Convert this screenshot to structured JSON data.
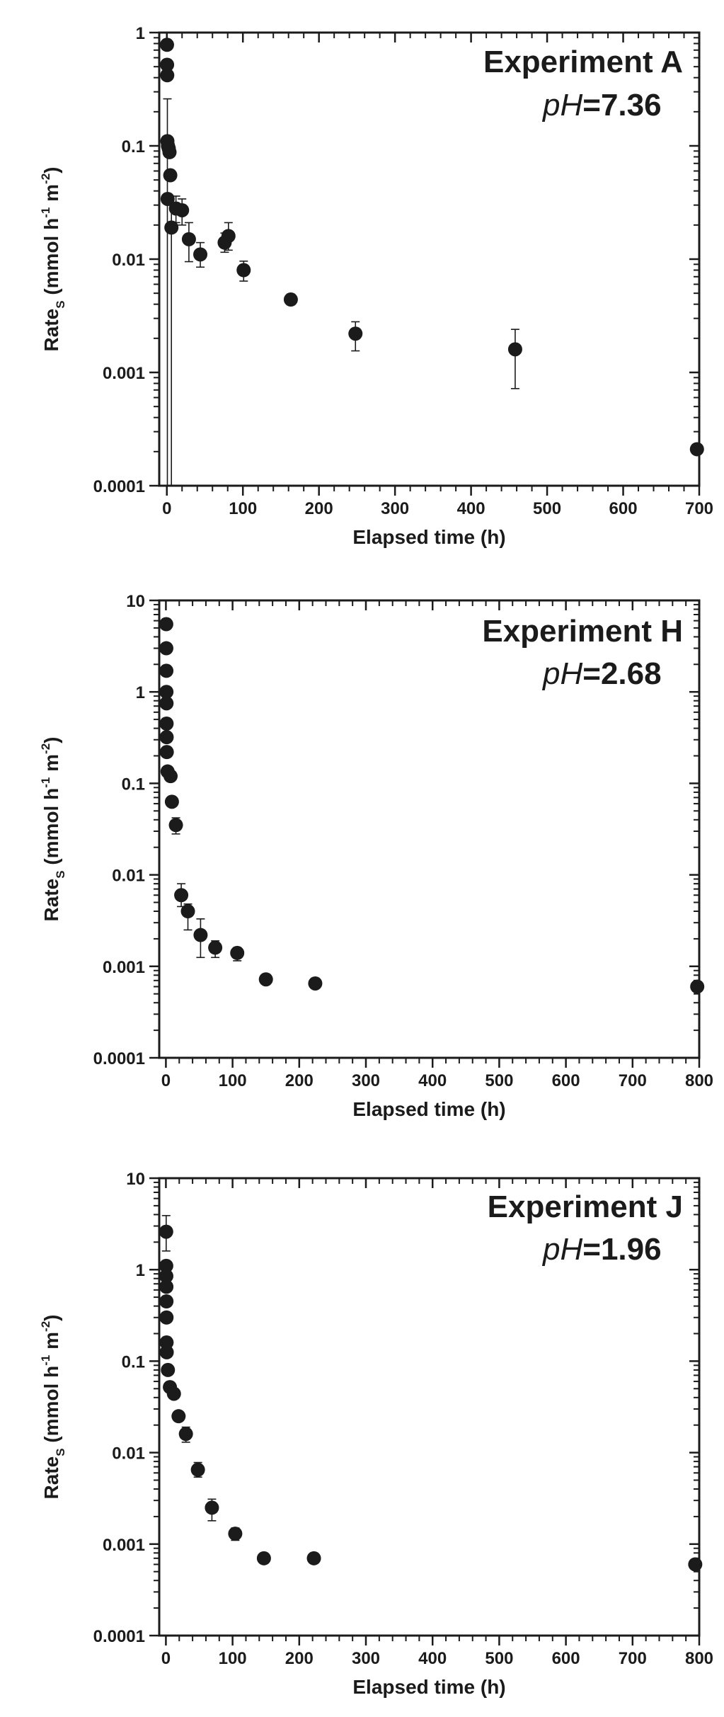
{
  "chart_data": [
    {
      "type": "scatter",
      "panel": "A",
      "annotation": "Experiment A",
      "ph_symbol": "pH",
      "ph_value": "=7.36",
      "xlabel": "Elapsed time (h)",
      "ylabel_main": "Rate",
      "ylabel_sub": "S",
      "ylabel_units_pre": " (mmol h",
      "ylabel_sup1": "-1",
      "ylabel_units_mid": " m",
      "ylabel_sup2": "-2",
      "ylabel_units_post": ")",
      "yscale": "log",
      "xlim": [
        -10,
        700
      ],
      "ylim": [
        0.0001,
        1
      ],
      "xticks": [
        0,
        100,
        200,
        300,
        400,
        500,
        600,
        700
      ],
      "xtick_labels": [
        "0",
        "100",
        "200",
        "300",
        "400",
        "500",
        "600",
        "700"
      ],
      "yticks": [
        0.0001,
        0.001,
        0.01,
        0.1,
        1
      ],
      "ytick_labels": [
        "0.0001",
        "0.001",
        "0.01",
        "0.1",
        "1"
      ],
      "marker_color": "#1b1b1b",
      "points": [
        {
          "x": 0.2,
          "y": 0.78
        },
        {
          "x": 0.3,
          "y": 0.52
        },
        {
          "x": 0.5,
          "y": 0.42
        },
        {
          "x": 0.7,
          "y": 0.11,
          "err_lo": 0.0001,
          "err_hi": 0.26
        },
        {
          "x": 1.5,
          "y": 0.1
        },
        {
          "x": 1.0,
          "y": 0.034
        },
        {
          "x": 2.5,
          "y": 0.095
        },
        {
          "x": 3.5,
          "y": 0.088
        },
        {
          "x": 4.5,
          "y": 0.055
        },
        {
          "x": 6,
          "y": 0.019,
          "err_lo": 0.0001,
          "err_hi": 0.03
        },
        {
          "x": 12,
          "y": 0.028,
          "err_lo": 0.021,
          "err_hi": 0.036
        },
        {
          "x": 20,
          "y": 0.027,
          "err_lo": 0.02,
          "err_hi": 0.034
        },
        {
          "x": 29,
          "y": 0.015,
          "err_lo": 0.0095,
          "err_hi": 0.021
        },
        {
          "x": 44,
          "y": 0.011,
          "err_lo": 0.0085,
          "err_hi": 0.014
        },
        {
          "x": 76,
          "y": 0.014,
          "err_lo": 0.0115,
          "err_hi": 0.017
        },
        {
          "x": 81,
          "y": 0.016,
          "err_lo": 0.012,
          "err_hi": 0.021
        },
        {
          "x": 101,
          "y": 0.008,
          "err_lo": 0.0064,
          "err_hi": 0.0096
        },
        {
          "x": 163,
          "y": 0.0044
        },
        {
          "x": 248,
          "y": 0.0022,
          "err_lo": 0.00155,
          "err_hi": 0.0028
        },
        {
          "x": 458,
          "y": 0.0016,
          "err_lo": 0.00072,
          "err_hi": 0.0024
        },
        {
          "x": 697,
          "y": 0.00021
        }
      ]
    },
    {
      "type": "scatter",
      "panel": "H",
      "annotation": "Experiment H",
      "ph_symbol": "pH",
      "ph_value": "=2.68",
      "xlabel": "Elapsed time (h)",
      "ylabel_main": "Rate",
      "ylabel_sub": "S",
      "ylabel_units_pre": " (mmol h",
      "ylabel_sup1": "-1",
      "ylabel_units_mid": " m",
      "ylabel_sup2": "-2",
      "ylabel_units_post": ")",
      "yscale": "log",
      "xlim": [
        -10,
        800
      ],
      "ylim": [
        0.0001,
        10
      ],
      "xticks": [
        0,
        100,
        200,
        300,
        400,
        500,
        600,
        700,
        800
      ],
      "xtick_labels": [
        "0",
        "100",
        "200",
        "300",
        "400",
        "500",
        "600",
        "700",
        "800"
      ],
      "yticks": [
        0.0001,
        0.001,
        0.01,
        0.1,
        1,
        10
      ],
      "ytick_labels": [
        "0.0001",
        "0.001",
        "0.01",
        "0.1",
        "1",
        "10"
      ],
      "marker_color": "#1b1b1b",
      "points": [
        {
          "x": 0.5,
          "y": 5.5
        },
        {
          "x": 0.6,
          "y": 3.0
        },
        {
          "x": 0.7,
          "y": 1.7
        },
        {
          "x": 0.8,
          "y": 1.0
        },
        {
          "x": 0.9,
          "y": 0.75
        },
        {
          "x": 1.0,
          "y": 0.45
        },
        {
          "x": 1.1,
          "y": 0.32
        },
        {
          "x": 1.3,
          "y": 0.22
        },
        {
          "x": 2.5,
          "y": 0.135
        },
        {
          "x": 7,
          "y": 0.12
        },
        {
          "x": 9,
          "y": 0.063
        },
        {
          "x": 15,
          "y": 0.035,
          "err_lo": 0.028,
          "err_hi": 0.042
        },
        {
          "x": 23,
          "y": 0.006,
          "err_lo": 0.0045,
          "err_hi": 0.008
        },
        {
          "x": 33,
          "y": 0.004,
          "err_lo": 0.0025,
          "err_hi": 0.0048
        },
        {
          "x": 52,
          "y": 0.0022,
          "err_lo": 0.00125,
          "err_hi": 0.0033
        },
        {
          "x": 74,
          "y": 0.0016,
          "err_lo": 0.00125,
          "err_hi": 0.0019
        },
        {
          "x": 107,
          "y": 0.0014,
          "err_lo": 0.00115,
          "err_hi": 0.0016
        },
        {
          "x": 150,
          "y": 0.00072
        },
        {
          "x": 224,
          "y": 0.00065
        },
        {
          "x": 797,
          "y": 0.0006
        }
      ]
    },
    {
      "type": "scatter",
      "panel": "J",
      "annotation": "Experiment J",
      "ph_symbol": "pH",
      "ph_value": "=1.96",
      "xlabel": "Elapsed time (h)",
      "ylabel_main": "Rate",
      "ylabel_sub": "S",
      "ylabel_units_pre": " (mmol h",
      "ylabel_sup1": "-1",
      "ylabel_units_mid": " m",
      "ylabel_sup2": "-2",
      "ylabel_units_post": ")",
      "yscale": "log",
      "xlim": [
        -10,
        800
      ],
      "ylim": [
        0.0001,
        10
      ],
      "xticks": [
        0,
        100,
        200,
        300,
        400,
        500,
        600,
        700,
        800
      ],
      "xtick_labels": [
        "0",
        "100",
        "200",
        "300",
        "400",
        "500",
        "600",
        "700",
        "800"
      ],
      "yticks": [
        0.0001,
        0.001,
        0.01,
        0.1,
        1,
        10
      ],
      "ytick_labels": [
        "0.0001",
        "0.001",
        "0.01",
        "0.1",
        "1",
        "10"
      ],
      "marker_color": "#1b1b1b",
      "points": [
        {
          "x": 0.4,
          "y": 2.6,
          "err_lo": 1.6,
          "err_hi": 3.9
        },
        {
          "x": 0.5,
          "y": 1.1
        },
        {
          "x": 0.6,
          "y": 0.85
        },
        {
          "x": 0.7,
          "y": 0.65
        },
        {
          "x": 0.8,
          "y": 0.45
        },
        {
          "x": 0.9,
          "y": 0.3
        },
        {
          "x": 1.0,
          "y": 0.16
        },
        {
          "x": 1.2,
          "y": 0.125
        },
        {
          "x": 3,
          "y": 0.08
        },
        {
          "x": 6,
          "y": 0.052
        },
        {
          "x": 12,
          "y": 0.044
        },
        {
          "x": 19,
          "y": 0.025
        },
        {
          "x": 30,
          "y": 0.016,
          "err_lo": 0.013,
          "err_hi": 0.019
        },
        {
          "x": 48,
          "y": 0.0065,
          "err_lo": 0.0054,
          "err_hi": 0.0078
        },
        {
          "x": 69,
          "y": 0.0025,
          "err_lo": 0.0018,
          "err_hi": 0.0031
        },
        {
          "x": 104,
          "y": 0.0013,
          "err_lo": 0.0011,
          "err_hi": 0.0015
        },
        {
          "x": 147,
          "y": 0.0007
        },
        {
          "x": 222,
          "y": 0.0007
        },
        {
          "x": 794,
          "y": 0.0006
        }
      ]
    }
  ]
}
